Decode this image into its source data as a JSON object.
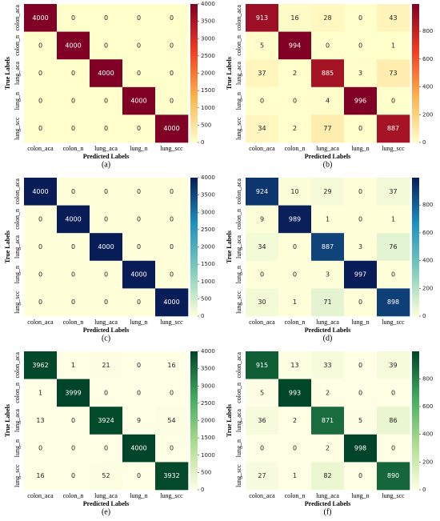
{
  "chart_data": [
    {
      "type": "heatmap",
      "panel": "(a)",
      "x_label": "Predicted Labels",
      "y_label": "True Labels",
      "categories": [
        "colon_aca",
        "colon_n",
        "lung_aca",
        "lung_n",
        "lung_scc"
      ],
      "values": [
        [
          4000,
          0,
          0,
          0,
          0
        ],
        [
          0,
          4000,
          0,
          0,
          0
        ],
        [
          0,
          0,
          4000,
          0,
          0
        ],
        [
          0,
          0,
          0,
          4000,
          0
        ],
        [
          0,
          0,
          0,
          0,
          4000
        ]
      ],
      "zlim": [
        0,
        4000
      ],
      "zticks": [
        0,
        500,
        1000,
        1500,
        2000,
        2500,
        3000,
        3500,
        4000
      ],
      "colorscale": [
        "#ffffcc",
        "#feb24c",
        "#f03b20",
        "#800026"
      ]
    },
    {
      "type": "heatmap",
      "panel": "(b)",
      "x_label": "Predicted Labels",
      "y_label": "True Labels",
      "categories": [
        "colon_aca",
        "colon_n",
        "lung_aca",
        "lung_n",
        "lung_scc"
      ],
      "values": [
        [
          913,
          16,
          28,
          0,
          43
        ],
        [
          5,
          994,
          0,
          0,
          1
        ],
        [
          37,
          2,
          885,
          3,
          73
        ],
        [
          0,
          0,
          4,
          996,
          0
        ],
        [
          34,
          2,
          77,
          0,
          887
        ]
      ],
      "zlim": [
        0,
        996
      ],
      "zticks": [
        0,
        200,
        400,
        600,
        800
      ],
      "colorscale": [
        "#ffffcc",
        "#feb24c",
        "#f03b20",
        "#800026"
      ]
    },
    {
      "type": "heatmap",
      "panel": "(c)",
      "x_label": "Predicted Labels",
      "y_label": "True Labels",
      "categories": [
        "colon_aca",
        "colon_n",
        "lung_aca",
        "lung_n",
        "lung_scc"
      ],
      "values": [
        [
          4000,
          0,
          0,
          0,
          0
        ],
        [
          0,
          4000,
          0,
          0,
          0
        ],
        [
          0,
          0,
          4000,
          0,
          0
        ],
        [
          0,
          0,
          0,
          4000,
          0
        ],
        [
          0,
          0,
          0,
          0,
          4000
        ]
      ],
      "zlim": [
        0,
        4000
      ],
      "zticks": [
        0,
        500,
        1000,
        1500,
        2000,
        2500,
        3000,
        3500,
        4000
      ],
      "colorscale": [
        "#ffffd9",
        "#7fcdbb",
        "#1d91c0",
        "#081d58"
      ]
    },
    {
      "type": "heatmap",
      "panel": "(d)",
      "x_label": "Predicted Labels",
      "y_label": "True Labels",
      "categories": [
        "colon_aca",
        "colon_n",
        "lung_aca",
        "lung_n",
        "lung_scc"
      ],
      "values": [
        [
          924,
          10,
          29,
          0,
          37
        ],
        [
          9,
          989,
          1,
          0,
          1
        ],
        [
          34,
          0,
          887,
          3,
          76
        ],
        [
          0,
          0,
          3,
          997,
          0
        ],
        [
          30,
          1,
          71,
          0,
          898
        ]
      ],
      "zlim": [
        0,
        997
      ],
      "zticks": [
        0,
        200,
        400,
        600,
        800
      ],
      "colorscale": [
        "#ffffd9",
        "#7fcdbb",
        "#1d91c0",
        "#081d58"
      ]
    },
    {
      "type": "heatmap",
      "panel": "(e)",
      "x_label": "Predicted Labels",
      "y_label": "True Labels",
      "categories": [
        "colon_aca",
        "colon_n",
        "lung_aca",
        "lung_n",
        "lung_scc"
      ],
      "values": [
        [
          3962,
          1,
          21,
          0,
          16
        ],
        [
          1,
          3999,
          0,
          0,
          0
        ],
        [
          13,
          0,
          3924,
          9,
          54
        ],
        [
          0,
          0,
          0,
          4000,
          0
        ],
        [
          16,
          0,
          52,
          0,
          3932
        ]
      ],
      "zlim": [
        0,
        4000
      ],
      "zticks": [
        0,
        500,
        1000,
        1500,
        2000,
        2500,
        3000,
        3500,
        4000
      ],
      "colorscale": [
        "#ffffe5",
        "#addd8e",
        "#41ab5d",
        "#004529"
      ]
    },
    {
      "type": "heatmap",
      "panel": "(f)",
      "x_label": "Predicted Labels",
      "y_label": "True Labels",
      "categories": [
        "colon_aca",
        "colon_n",
        "lung_aca",
        "lung_n",
        "lung_scc"
      ],
      "values": [
        [
          915,
          13,
          33,
          0,
          39
        ],
        [
          5,
          993,
          2,
          0,
          0
        ],
        [
          36,
          2,
          871,
          5,
          86
        ],
        [
          0,
          0,
          2,
          998,
          0
        ],
        [
          27,
          1,
          82,
          0,
          890
        ]
      ],
      "zlim": [
        0,
        998
      ],
      "zticks": [
        0,
        200,
        400,
        600,
        800
      ],
      "colorscale": [
        "#ffffe5",
        "#addd8e",
        "#41ab5d",
        "#004529"
      ]
    }
  ]
}
